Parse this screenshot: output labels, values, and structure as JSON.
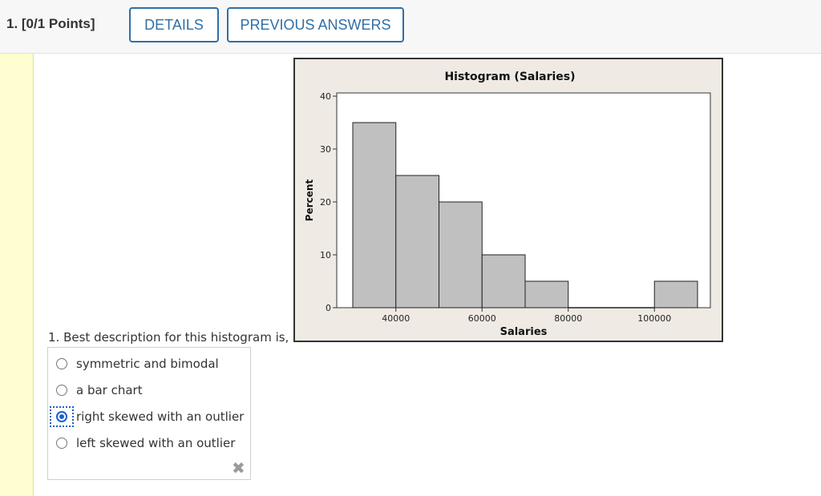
{
  "header": {
    "question_points": "1. [0/1 Points]",
    "details_label": "DETAILS",
    "previous_answers_label": "PREVIOUS ANSWERS"
  },
  "question": {
    "prompt": "1. Best description for this histogram is,",
    "options": [
      {
        "label": "symmetric and bimodal",
        "selected": false
      },
      {
        "label": "a bar chart",
        "selected": false
      },
      {
        "label": "right skewed with an outlier",
        "selected": true
      },
      {
        "label": "left skewed with an outlier",
        "selected": false
      }
    ],
    "result_icon": "x-icon"
  },
  "chart_data": {
    "type": "bar",
    "title": "Histogram (Salaries)",
    "xlabel": "Salaries",
    "ylabel": "Percent",
    "ylim": [
      0,
      40
    ],
    "yticks": [
      0,
      10,
      20,
      30,
      40
    ],
    "xticks": [
      40000,
      60000,
      80000,
      100000
    ],
    "bins": [
      {
        "start": 30000,
        "end": 40000,
        "value": 35
      },
      {
        "start": 40000,
        "end": 50000,
        "value": 25
      },
      {
        "start": 50000,
        "end": 60000,
        "value": 20
      },
      {
        "start": 60000,
        "end": 70000,
        "value": 10
      },
      {
        "start": 70000,
        "end": 80000,
        "value": 5
      },
      {
        "start": 80000,
        "end": 90000,
        "value": 0
      },
      {
        "start": 90000,
        "end": 100000,
        "value": 0
      },
      {
        "start": 100000,
        "end": 110000,
        "value": 5
      }
    ],
    "bar_color": "#c0c0c0",
    "background_color": "#efebe4"
  }
}
